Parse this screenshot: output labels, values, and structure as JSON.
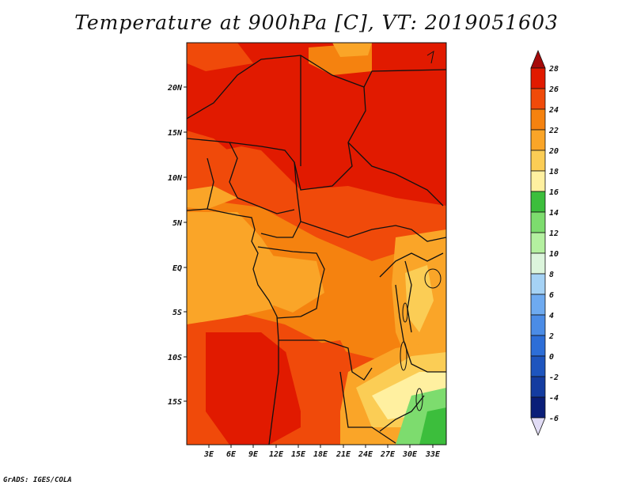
{
  "title": "Temperature at 900hPa [C], VT: 2019051603",
  "credit": "GrADS: IGES/COLA",
  "map": {
    "lat_labels": [
      "20N",
      "15N",
      "10N",
      "5N",
      "EQ",
      "5S",
      "10S",
      "15S"
    ],
    "lon_labels": [
      "3E",
      "6E",
      "9E",
      "12E",
      "15E",
      "18E",
      "21E",
      "24E",
      "27E",
      "30E",
      "33E"
    ]
  },
  "colorbar": {
    "labels": [
      "28",
      "26",
      "24",
      "22",
      "20",
      "18",
      "16",
      "14",
      "12",
      "10",
      "8",
      "6",
      "4",
      "2",
      "0",
      "-2",
      "-4",
      "-6"
    ],
    "colors": {
      "c28": "#a50a0a",
      "c26": "#e11a00",
      "c24": "#f04a0a",
      "c22": "#f5820f",
      "c20": "#faa528",
      "c18": "#fbcd55",
      "c16": "#fff0a0",
      "c14": "#3cbe3c",
      "c12": "#7ddc6e",
      "c10": "#b4f0a0",
      "c8": "#dcf5dc",
      "c6": "#a5d2f5",
      "c4": "#6eaaf0",
      "c2": "#4b8ce6",
      "c0": "#2d6ed7",
      "cm2": "#1e55be",
      "cm4": "#143ca0",
      "cm6": "#0a1e78",
      "cmin": "#e1dcf5"
    }
  }
}
